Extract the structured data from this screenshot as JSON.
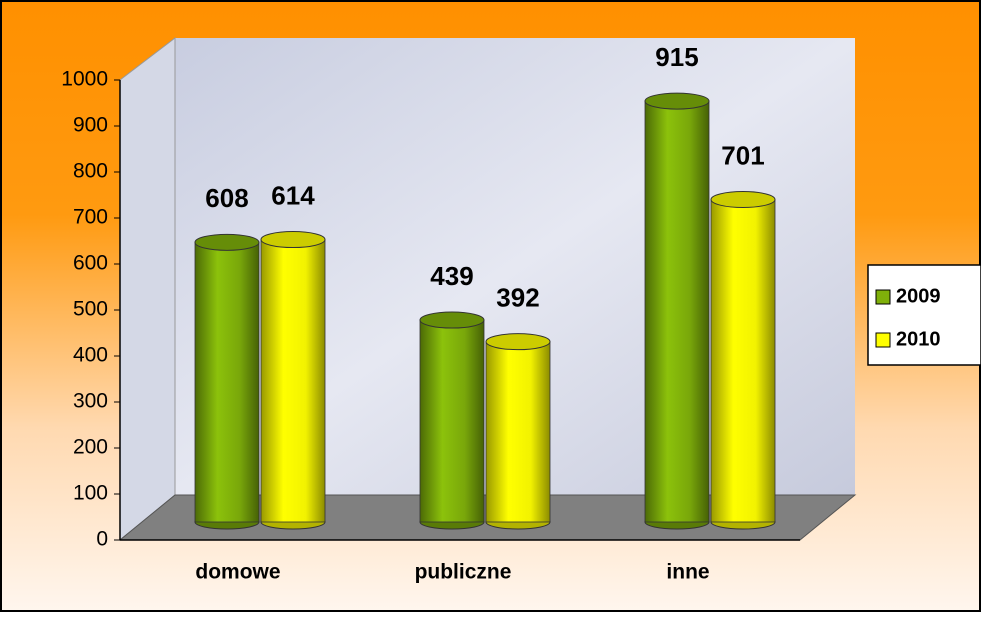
{
  "chart_data": {
    "type": "bar",
    "categories": [
      "domowe",
      "publiczne",
      "inne"
    ],
    "series": [
      {
        "name": "2009",
        "color": "#7fb00a",
        "values": [
          608,
          439,
          915
        ]
      },
      {
        "name": "2010",
        "color": "#ffff00",
        "values": [
          614,
          392,
          701
        ]
      }
    ],
    "ylim": [
      0,
      1000
    ],
    "yticks": [
      0,
      100,
      200,
      300,
      400,
      500,
      600,
      700,
      800,
      900,
      1000
    ],
    "legend": "right"
  }
}
